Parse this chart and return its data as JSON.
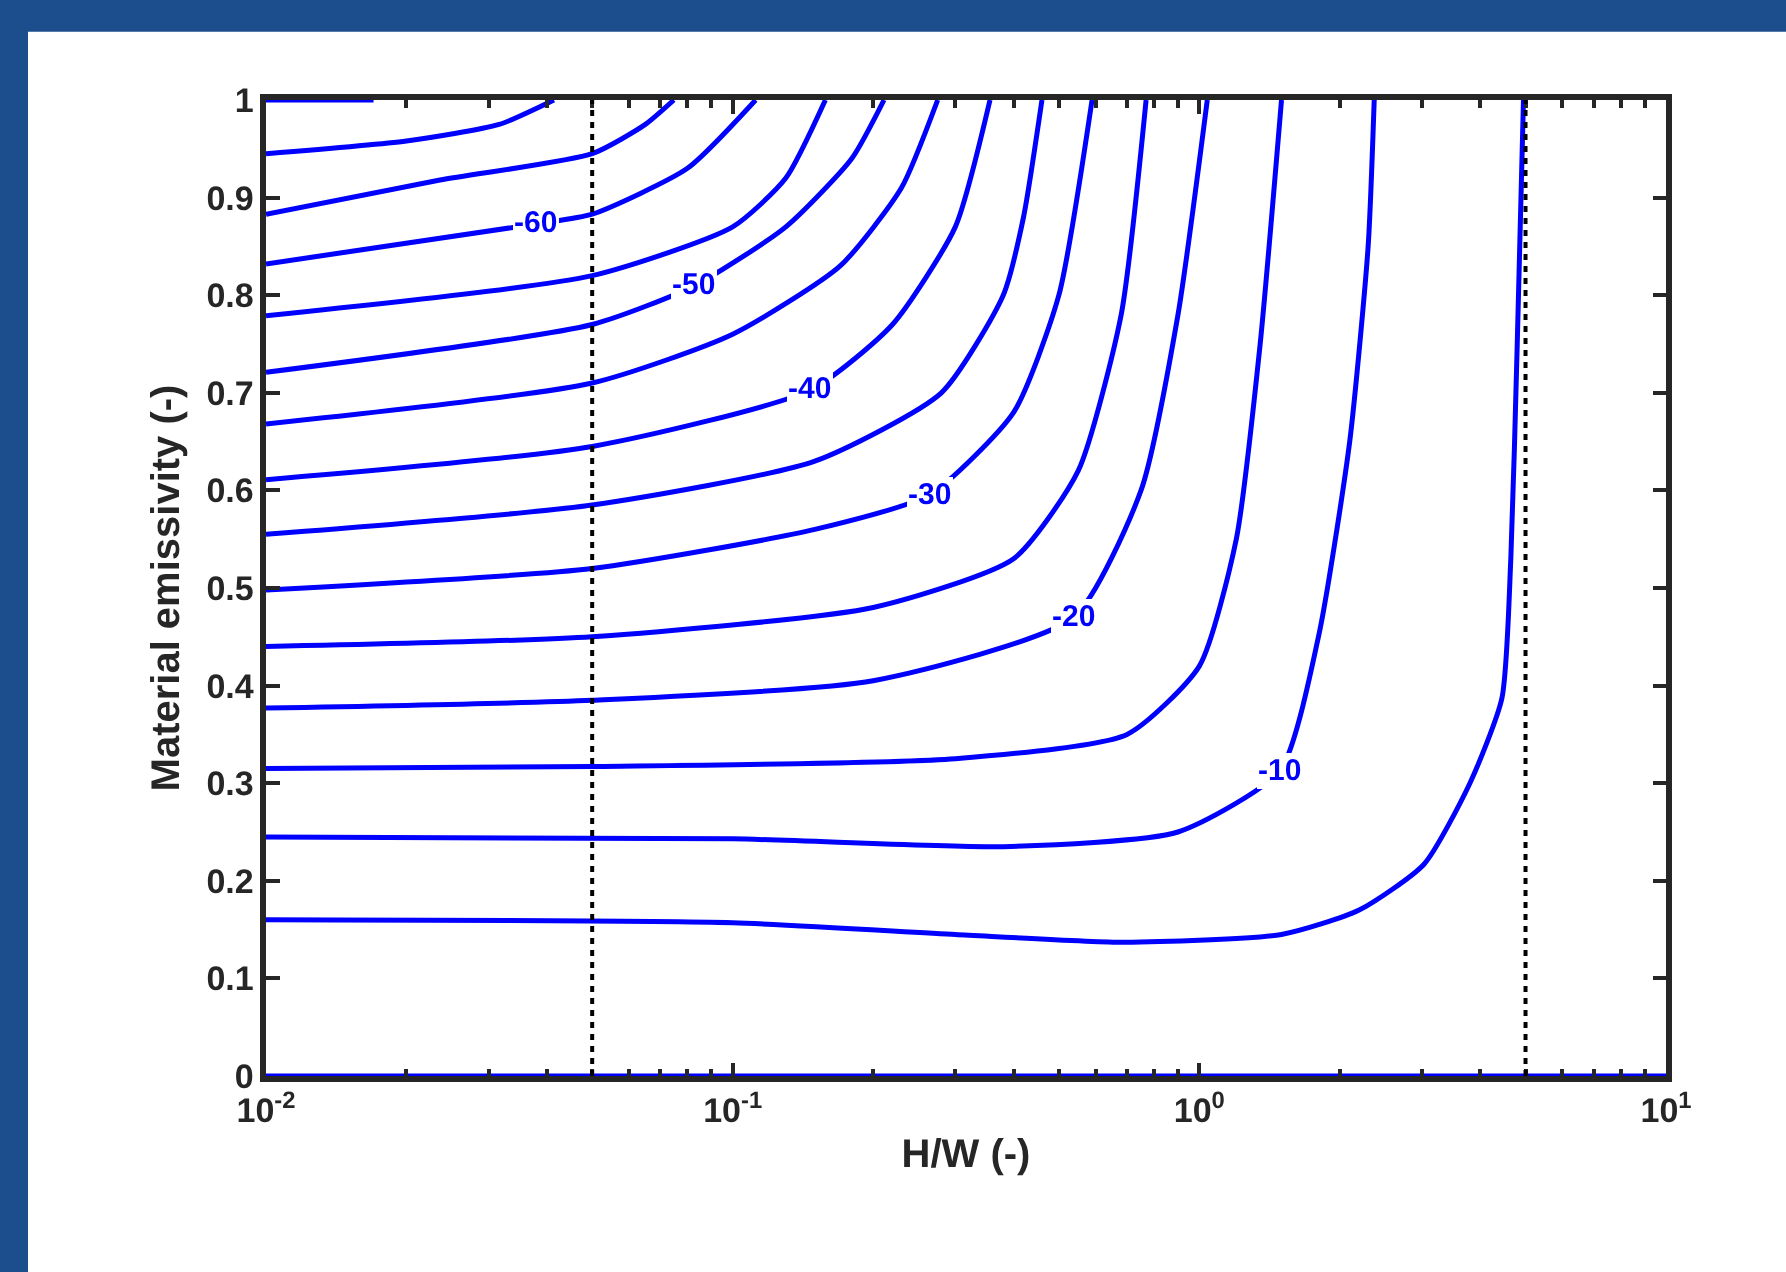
{
  "chart_data": {
    "type": "line",
    "xlabel": "H/W (-)",
    "ylabel": "Material emissivity (-)",
    "log": "x",
    "marker": "none",
    "line_style": "solid",
    "xlim": [
      0.01,
      10
    ],
    "xticks": [
      {
        "value": 0.01,
        "label": "10$^{-2}$"
      },
      {
        "value": 0.1,
        "label": "10$^{-1}$"
      },
      {
        "value": 1,
        "label": "10$^{0}$"
      },
      {
        "value": 10,
        "label": "10$^{1}$"
      }
    ],
    "ylim": [
      0,
      1
    ],
    "yticks": [
      0,
      0.1,
      0.2,
      0.3,
      0.4,
      0.5,
      0.6,
      0.7,
      0.8,
      0.9,
      1
    ],
    "series": [
      {
        "color": "#0000ff",
        "x": [
          0.01,
          0.017
        ],
        "values": [
          1.0,
          1.0
        ]
      },
      {
        "color": "#0000ff",
        "x": [
          0.01,
          0.02,
          0.0316,
          0.0414
        ],
        "values": [
          0.945,
          0.958,
          0.975,
          1.0
        ]
      },
      {
        "color": "#0000ff",
        "x": [
          0.01,
          0.0236,
          0.05,
          0.065,
          0.0748
        ],
        "values": [
          0.883,
          0.918,
          0.945,
          0.975,
          1.0
        ]
      },
      {
        "color": "#0000ff",
        "x": [
          0.01,
          0.038,
          0.05,
          0.08,
          0.112
        ],
        "values": [
          0.832,
          0.873,
          0.883,
          0.93,
          1.0
        ]
      },
      {
        "color": "#0000ff",
        "x": [
          0.01,
          0.05,
          0.1,
          0.13,
          0.158
        ],
        "values": [
          0.779,
          0.82,
          0.87,
          0.92,
          1.0
        ]
      },
      {
        "color": "#0000ff",
        "x": [
          0.01,
          0.05,
          0.083,
          0.13,
          0.18,
          0.211
        ],
        "values": [
          0.721,
          0.77,
          0.81,
          0.87,
          0.94,
          1.0
        ]
      },
      {
        "color": "#0000ff",
        "x": [
          0.01,
          0.05,
          0.1,
          0.17,
          0.23,
          0.275
        ],
        "values": [
          0.668,
          0.71,
          0.76,
          0.83,
          0.91,
          1.0
        ]
      },
      {
        "color": "#0000ff",
        "x": [
          0.01,
          0.05,
          0.147,
          0.22,
          0.3,
          0.356
        ],
        "values": [
          0.611,
          0.645,
          0.703,
          0.77,
          0.87,
          1.0
        ]
      },
      {
        "color": "#0000ff",
        "x": [
          0.01,
          0.05,
          0.15,
          0.28,
          0.38,
          0.42,
          0.46
        ],
        "values": [
          0.555,
          0.585,
          0.63,
          0.7,
          0.8,
          0.88,
          1.0
        ]
      },
      {
        "color": "#0000ff",
        "x": [
          0.01,
          0.05,
          0.15,
          0.265,
          0.4,
          0.5,
          0.589
        ],
        "values": [
          0.498,
          0.52,
          0.56,
          0.596,
          0.68,
          0.8,
          1.0
        ]
      },
      {
        "color": "#0000ff",
        "x": [
          0.01,
          0.05,
          0.2,
          0.4,
          0.55,
          0.68,
          0.769
        ],
        "values": [
          0.44,
          0.45,
          0.48,
          0.53,
          0.62,
          0.78,
          1.0
        ]
      },
      {
        "color": "#0000ff",
        "x": [
          0.01,
          0.05,
          0.2,
          0.538,
          0.75,
          0.9,
          1.04
        ],
        "values": [
          0.377,
          0.385,
          0.405,
          0.47,
          0.6,
          0.78,
          1.0
        ]
      },
      {
        "color": "#0000ff",
        "x": [
          0.01,
          0.05,
          0.3,
          0.7,
          1.0,
          1.2,
          1.35,
          1.5
        ],
        "values": [
          0.315,
          0.317,
          0.325,
          0.35,
          0.42,
          0.55,
          0.75,
          1.0
        ]
      },
      {
        "color": "#0000ff",
        "x": [
          0.01,
          0.1,
          0.38,
          0.9,
          1.49,
          1.8,
          2.1,
          2.3,
          2.37
        ],
        "values": [
          0.245,
          0.243,
          0.235,
          0.25,
          0.313,
          0.45,
          0.65,
          0.85,
          1.0
        ]
      },
      {
        "color": "#0000ff",
        "x": [
          0.01,
          0.1,
          0.3,
          0.69,
          1.5,
          2.2,
          3.03,
          3.8,
          4.45,
          4.65,
          4.8,
          4.95
        ],
        "values": [
          0.16,
          0.157,
          0.145,
          0.137,
          0.145,
          0.17,
          0.217,
          0.3,
          0.387,
          0.53,
          0.75,
          1.0
        ]
      },
      {
        "color": "#0000ff",
        "x": [
          0.01,
          10
        ],
        "values": [
          0,
          0
        ]
      }
    ],
    "ref_lines": [
      {
        "axis": "x",
        "value": 0.05,
        "color": "#000000",
        "line_style": "dotted"
      },
      {
        "axis": "x",
        "value": 5,
        "color": "#000000",
        "line_style": "dotted"
      }
    ],
    "annotations": [
      {
        "text": "-60",
        "x": 0.038,
        "y": 0.873
      },
      {
        "text": "-50",
        "x": 0.083,
        "y": 0.81
      },
      {
        "text": "-40",
        "x": 0.147,
        "y": 0.703
      },
      {
        "text": "-30",
        "x": 0.265,
        "y": 0.596
      },
      {
        "text": "-20",
        "x": 0.538,
        "y": 0.47
      },
      {
        "text": "-10",
        "x": 1.49,
        "y": 0.313
      }
    ]
  }
}
